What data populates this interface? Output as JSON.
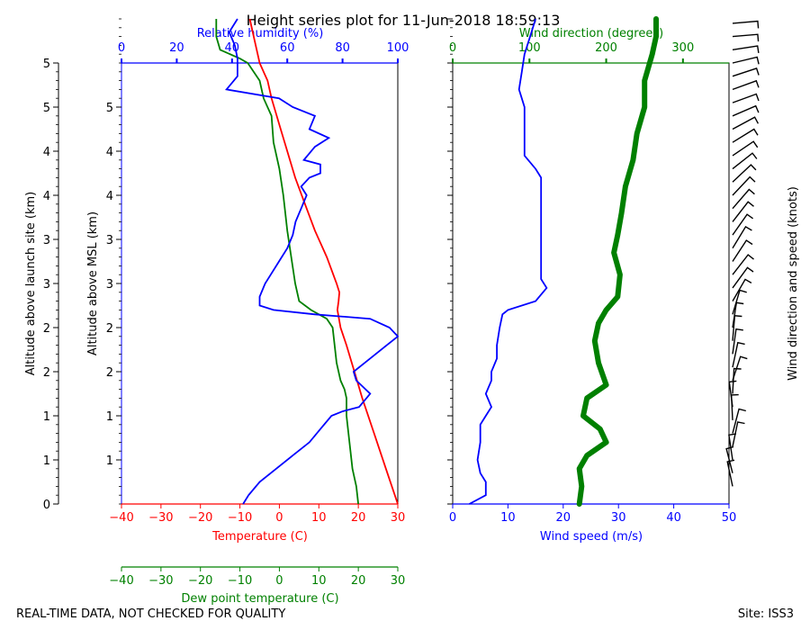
{
  "title": "Height series plot for 11-Jun-2018 18:59:13",
  "footer": {
    "left": "REAL-TIME DATA, NOT CHECKED FOR QUALITY",
    "right": "Site: ISS3"
  },
  "colors": {
    "temperature": "#ff0000",
    "dewpoint": "#008000",
    "humidity": "#0000ff",
    "wind_speed": "#0000ff",
    "wind_direction": "#008000",
    "barbs": "#000000"
  },
  "chart_data": [
    {
      "type": "line",
      "name": "thermodynamic-panel",
      "axes": {
        "left_outer_label": "Altitude above launch site (km)",
        "left_outer_ticks": [
          "0",
          "1",
          "1",
          "2",
          "2",
          "3",
          "3",
          "4",
          "4",
          "5",
          "5"
        ],
        "left_outer_range": [
          0,
          5
        ],
        "left_inner_label": "Altitude above MSL (km)",
        "left_inner_ticks": [
          "1",
          "1",
          "2",
          "2",
          "3",
          "3",
          "4",
          "4",
          "5"
        ],
        "bottom_label": "Temperature (C)",
        "bottom_ticks": [
          "−40",
          "−30",
          "−20",
          "−10",
          "0",
          "10",
          "20",
          "30"
        ],
        "bottom_range": [
          -40,
          30
        ],
        "dew_label": "Dew point temperature (C)",
        "dew_ticks": [
          "−40",
          "−30",
          "−20",
          "−10",
          "0",
          "10",
          "20",
          "30"
        ],
        "dew_range": [
          -40,
          30
        ],
        "top_label": "Relative humidity (%)",
        "top_ticks": [
          "0",
          "20",
          "40",
          "60",
          "80",
          "100"
        ],
        "top_range": [
          0,
          100
        ]
      },
      "series": [
        {
          "name": "Temperature",
          "x_axis": "temperature",
          "points": [
            [
              30,
              0
            ],
            [
              27,
              0.4
            ],
            [
              24,
              0.8
            ],
            [
              21,
              1.2
            ],
            [
              19,
              1.5
            ],
            [
              17,
              1.8
            ],
            [
              15.5,
              2.0
            ],
            [
              14.7,
              2.2
            ],
            [
              15,
              2.3
            ],
            [
              15.2,
              2.4
            ],
            [
              14.5,
              2.5
            ],
            [
              12,
              2.8
            ],
            [
              9,
              3.1
            ],
            [
              6.5,
              3.4
            ],
            [
              4,
              3.7
            ],
            [
              2,
              4.0
            ],
            [
              0,
              4.3
            ],
            [
              -2,
              4.6
            ],
            [
              -3,
              4.8
            ],
            [
              -5,
              5.0
            ],
            [
              -6.5,
              5.3
            ],
            [
              -7.5,
              5.5
            ]
          ]
        },
        {
          "name": "Dew point",
          "x_axis": "dewpoint",
          "points": [
            [
              20,
              0
            ],
            [
              19.5,
              0.2
            ],
            [
              18.5,
              0.4
            ],
            [
              18,
              0.6
            ],
            [
              17.5,
              0.8
            ],
            [
              17,
              1.0
            ],
            [
              17,
              1.2
            ],
            [
              16.5,
              1.3
            ],
            [
              15.5,
              1.4
            ],
            [
              14.5,
              1.6
            ],
            [
              14,
              1.8
            ],
            [
              13.5,
              2.0
            ],
            [
              12,
              2.1
            ],
            [
              8,
              2.2
            ],
            [
              5,
              2.3
            ],
            [
              4,
              2.5
            ],
            [
              3,
              2.8
            ],
            [
              2,
              3.1
            ],
            [
              1,
              3.5
            ],
            [
              0,
              3.8
            ],
            [
              -1.5,
              4.1
            ],
            [
              -2,
              4.4
            ],
            [
              -4,
              4.6
            ],
            [
              -5,
              4.8
            ],
            [
              -8,
              5.0
            ],
            [
              -10,
              5.05
            ],
            [
              -15,
              5.15
            ],
            [
              -16,
              5.3
            ],
            [
              -16,
              5.5
            ]
          ]
        },
        {
          "name": "Relative humidity",
          "x_axis": "humidity",
          "points": [
            [
              44,
              0
            ],
            [
              46,
              0.1
            ],
            [
              50,
              0.25
            ],
            [
              56,
              0.4
            ],
            [
              62,
              0.55
            ],
            [
              68,
              0.7
            ],
            [
              72,
              0.85
            ],
            [
              76,
              1.0
            ],
            [
              80,
              1.05
            ],
            [
              86,
              1.1
            ],
            [
              90,
              1.25
            ],
            [
              85,
              1.4
            ],
            [
              84,
              1.5
            ],
            [
              88,
              1.6
            ],
            [
              96,
              1.8
            ],
            [
              100,
              1.9
            ],
            [
              97,
              2.0
            ],
            [
              90,
              2.1
            ],
            [
              70,
              2.15
            ],
            [
              55,
              2.2
            ],
            [
              50,
              2.25
            ],
            [
              50,
              2.35
            ],
            [
              52,
              2.5
            ],
            [
              54,
              2.6
            ],
            [
              57,
              2.75
            ],
            [
              60,
              2.9
            ],
            [
              62,
              3.05
            ],
            [
              63,
              3.2
            ],
            [
              65,
              3.35
            ],
            [
              67,
              3.5
            ],
            [
              65,
              3.6
            ],
            [
              68,
              3.7
            ],
            [
              72,
              3.75
            ],
            [
              72,
              3.85
            ],
            [
              66,
              3.9
            ],
            [
              70,
              4.05
            ],
            [
              75,
              4.15
            ],
            [
              68,
              4.25
            ],
            [
              70,
              4.4
            ],
            [
              62,
              4.5
            ],
            [
              57,
              4.6
            ],
            [
              38,
              4.7
            ],
            [
              42,
              4.85
            ],
            [
              42,
              5.05
            ],
            [
              41,
              5.2
            ],
            [
              39,
              5.35
            ],
            [
              42,
              5.5
            ]
          ]
        }
      ]
    },
    {
      "type": "line",
      "name": "wind-panel",
      "axes": {
        "bottom_label": "Wind speed (m/s)",
        "bottom_ticks": [
          "0",
          "10",
          "20",
          "30",
          "40",
          "50"
        ],
        "bottom_range": [
          0,
          50
        ],
        "top_label": "Wind direction (degrees)",
        "top_ticks": [
          "0",
          "100",
          "200",
          "300"
        ],
        "top_range": [
          0,
          360
        ],
        "right_label": "Wind direction and speed (knots)"
      },
      "series": [
        {
          "name": "Wind speed",
          "x_axis": "speed",
          "points": [
            [
              3,
              0
            ],
            [
              6,
              0.1
            ],
            [
              6,
              0.25
            ],
            [
              5,
              0.35
            ],
            [
              4.5,
              0.5
            ],
            [
              5,
              0.7
            ],
            [
              5,
              0.9
            ],
            [
              6,
              1.0
            ],
            [
              7,
              1.1
            ],
            [
              6,
              1.25
            ],
            [
              7,
              1.4
            ],
            [
              7,
              1.5
            ],
            [
              8,
              1.65
            ],
            [
              8,
              1.8
            ],
            [
              8.5,
              2.0
            ],
            [
              9,
              2.15
            ],
            [
              10,
              2.2
            ],
            [
              15,
              2.3
            ],
            [
              17,
              2.45
            ],
            [
              16,
              2.55
            ],
            [
              16,
              3.0
            ],
            [
              16,
              3.4
            ],
            [
              16,
              3.6
            ],
            [
              16,
              3.7
            ],
            [
              15,
              3.8
            ],
            [
              13,
              3.95
            ],
            [
              13,
              4.1
            ],
            [
              13,
              4.3
            ],
            [
              13,
              4.5
            ],
            [
              12,
              4.7
            ],
            [
              12.5,
              4.9
            ],
            [
              13,
              5.1
            ],
            [
              14,
              5.3
            ],
            [
              15,
              5.5
            ]
          ]
        },
        {
          "name": "Wind direction",
          "x_axis": "direction",
          "points": [
            [
              165,
              0
            ],
            [
              168,
              0.2
            ],
            [
              165,
              0.4
            ],
            [
              175,
              0.55
            ],
            [
              200,
              0.7
            ],
            [
              192,
              0.85
            ],
            [
              170,
              1.0
            ],
            [
              175,
              1.2
            ],
            [
              200,
              1.35
            ],
            [
              190,
              1.6
            ],
            [
              185,
              1.85
            ],
            [
              190,
              2.05
            ],
            [
              200,
              2.2
            ],
            [
              215,
              2.35
            ],
            [
              218,
              2.6
            ],
            [
              210,
              2.85
            ],
            [
              215,
              3.05
            ],
            [
              220,
              3.3
            ],
            [
              225,
              3.6
            ],
            [
              235,
              3.9
            ],
            [
              240,
              4.2
            ],
            [
              250,
              4.5
            ],
            [
              250,
              4.8
            ],
            [
              260,
              5.1
            ],
            [
              265,
              5.3
            ],
            [
              265,
              5.5
            ]
          ]
        }
      ],
      "barbs_heights_km": [
        0.2,
        0.35,
        0.5,
        0.65,
        0.8,
        0.95,
        1.1,
        1.25,
        1.4,
        1.55,
        1.7,
        1.85,
        2.0,
        2.15,
        2.3,
        2.45,
        2.6,
        2.75,
        2.9,
        3.05,
        3.2,
        3.35,
        3.5,
        3.65,
        3.8,
        3.95,
        4.1,
        4.25,
        4.4,
        4.55,
        4.7,
        4.85,
        5.0,
        5.15,
        5.3,
        5.45
      ]
    }
  ]
}
